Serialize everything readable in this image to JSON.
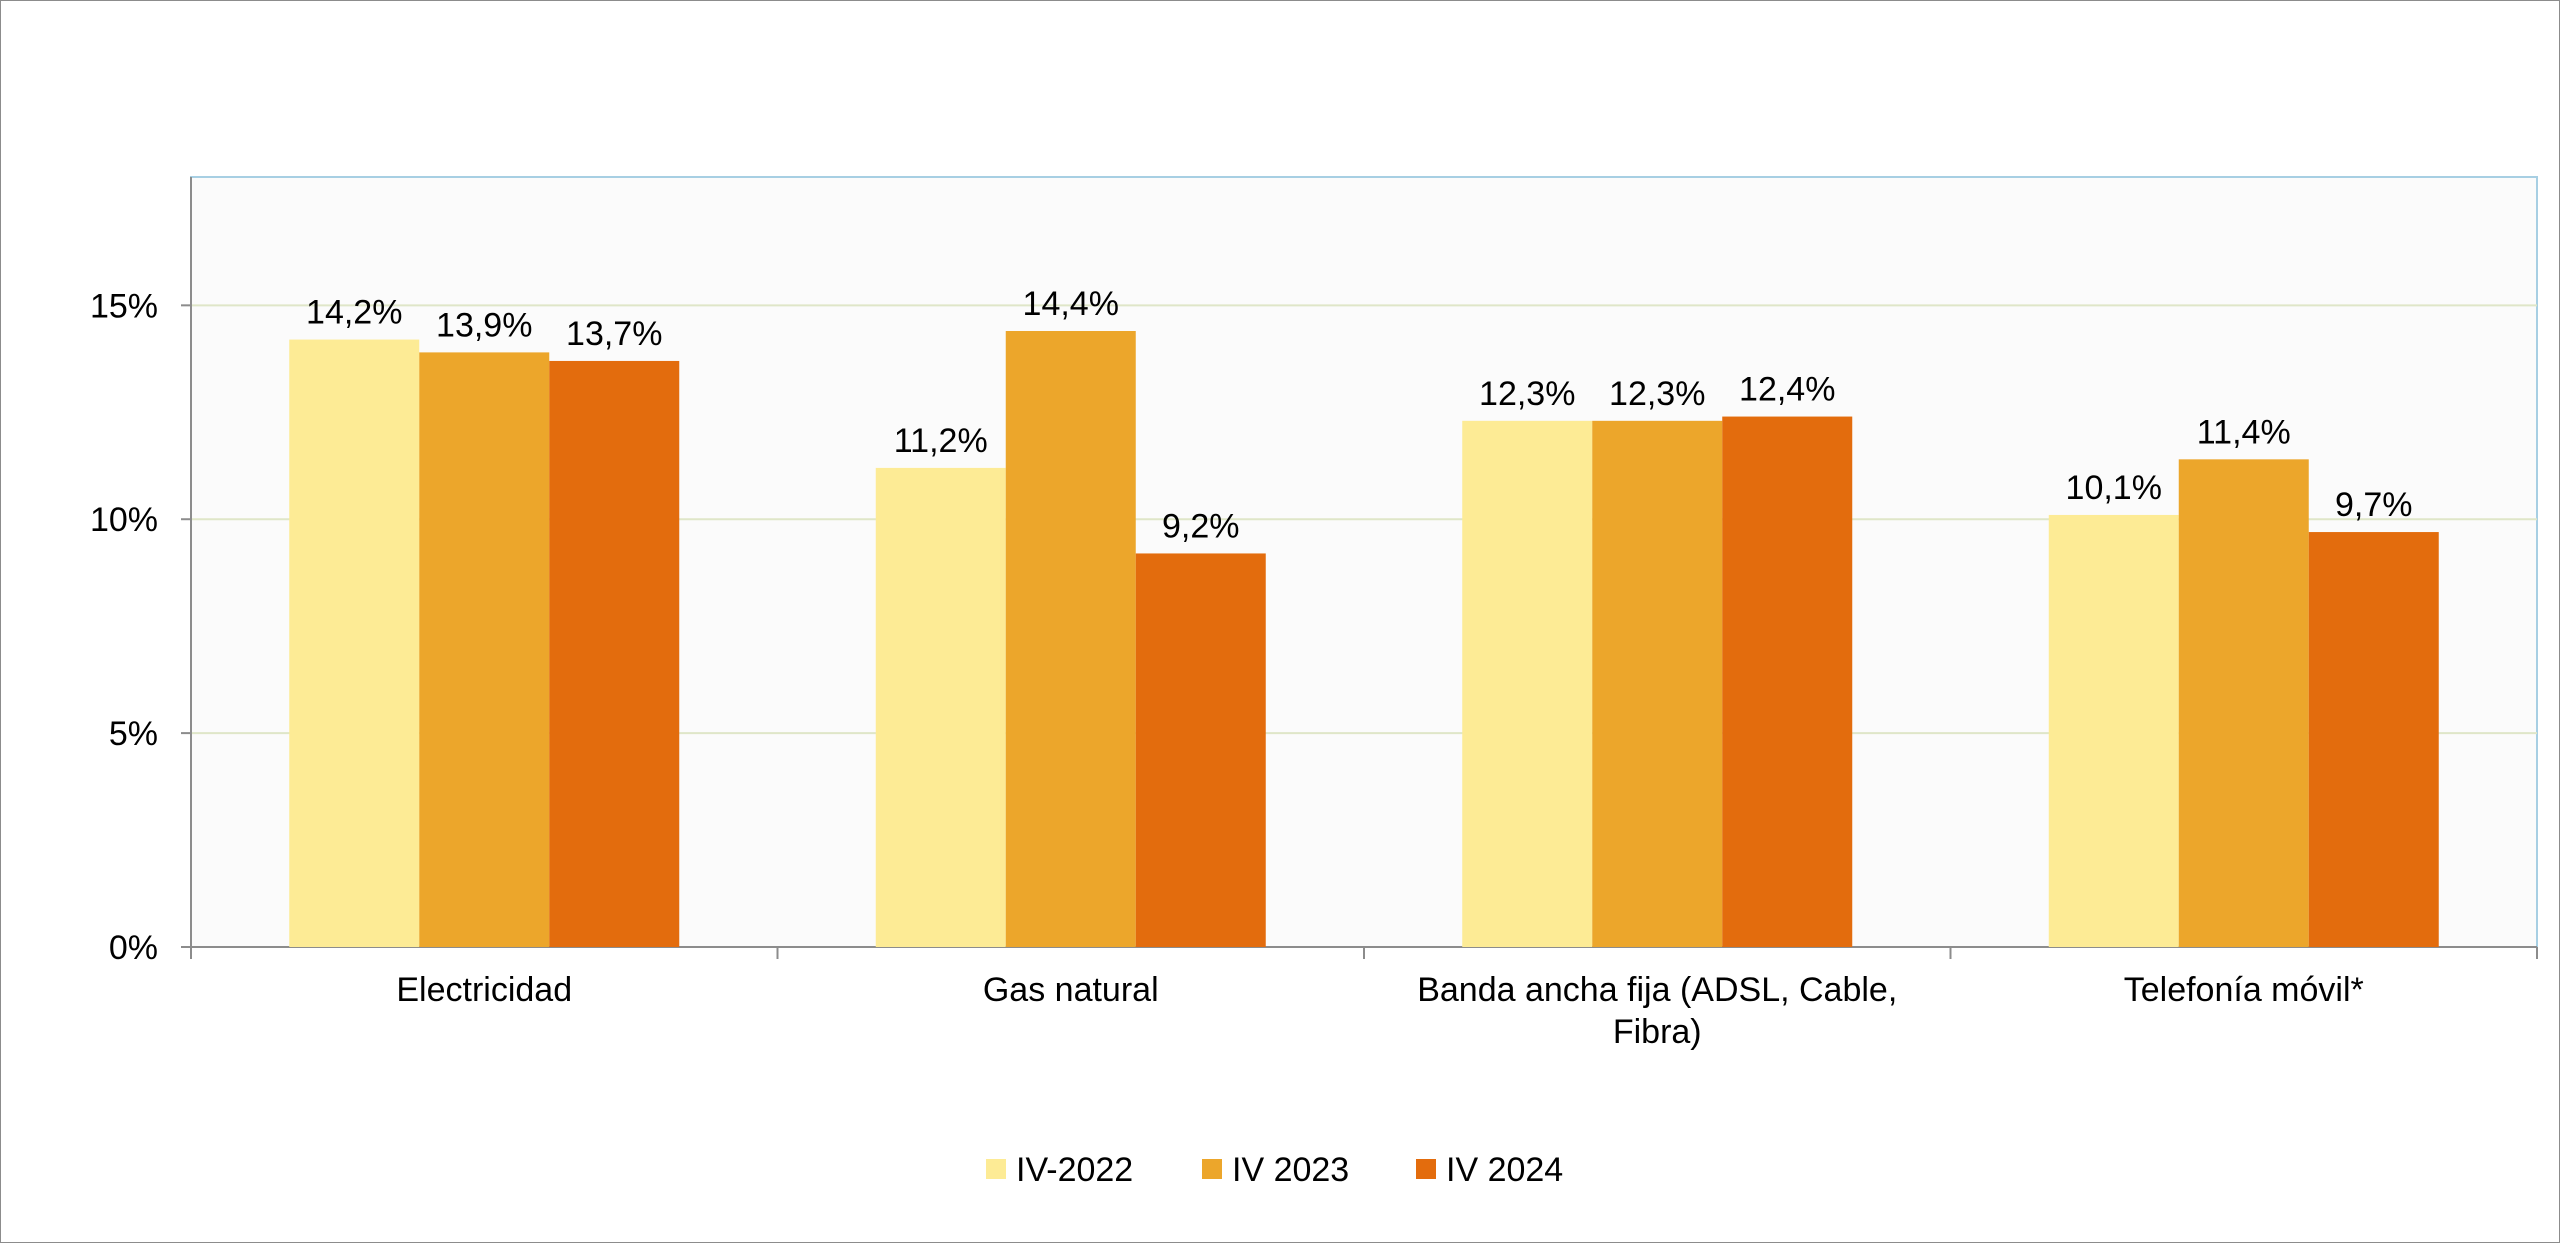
{
  "chart_data": {
    "type": "bar",
    "categories": [
      [
        "Electricidad"
      ],
      [
        "Gas natural"
      ],
      [
        "Banda ancha fija (ADSL, Cable,",
        "Fibra)"
      ],
      [
        "Telefonía móvil*"
      ]
    ],
    "series": [
      {
        "name": "IV-2022",
        "values": [
          14.2,
          11.2,
          12.3,
          10.1
        ],
        "labels": [
          "14,2%",
          "11,2%",
          "12,3%",
          "10,1%"
        ],
        "color": "#fdeb95"
      },
      {
        "name": "IV 2023",
        "values": [
          13.9,
          14.4,
          12.3,
          11.4
        ],
        "labels": [
          "13,9%",
          "14,4%",
          "12,3%",
          "11,4%"
        ],
        "color": "#eca62b"
      },
      {
        "name": "IV 2024",
        "values": [
          13.7,
          9.2,
          12.4,
          9.7
        ],
        "labels": [
          "13,7%",
          "9,2%",
          "12,4%",
          "9,7%"
        ],
        "color": "#e36c0d"
      }
    ],
    "yticks": [
      0,
      5,
      10,
      15
    ],
    "ytick_labels": [
      "0%",
      "5%",
      "10%",
      "15%"
    ],
    "ylim": [
      0,
      18
    ],
    "grid": true,
    "legend_position": "bottom",
    "plot_background": "#fbfbfb",
    "gridline_color": "#dfe6c8",
    "plot_border_color": "#a7cfe3",
    "axis_color": "#8c8c8c"
  }
}
